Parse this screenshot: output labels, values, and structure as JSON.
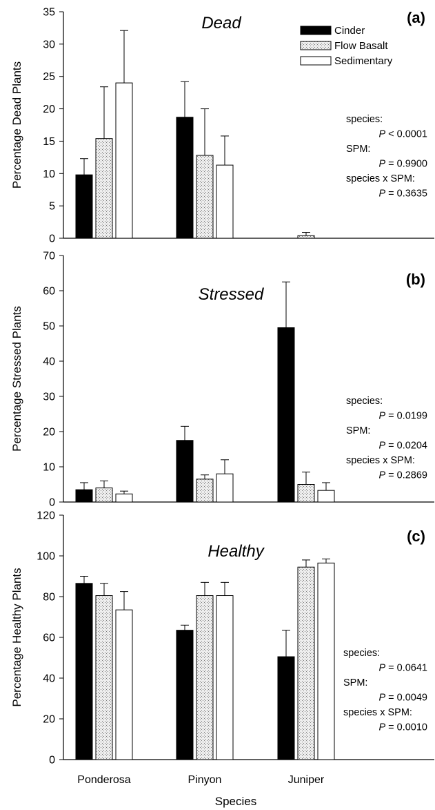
{
  "figure": {
    "xlabel": "Species",
    "categories": [
      "Ponderosa",
      "Pinyon",
      "Juniper"
    ]
  },
  "legend": {
    "entries": [
      {
        "name": "Cinder",
        "pattern": "solid-black"
      },
      {
        "name": "Flow Basalt",
        "pattern": "stipple-grey"
      },
      {
        "name": "Sedimentary",
        "pattern": "white"
      }
    ]
  },
  "colors": {
    "cinder": "#000000",
    "flow_basalt_fill": "#e2e2e2",
    "sedimentary": "#ffffff",
    "axis": "#000000"
  },
  "chart_data": [
    {
      "type": "bar",
      "panel": "(a)",
      "title": "Dead",
      "ylabel": "Percentage Dead Plants",
      "ylim": [
        0,
        35
      ],
      "yticks": [
        0,
        5,
        10,
        15,
        20,
        25,
        30,
        35
      ],
      "categories": [
        "Ponderosa",
        "Pinyon",
        "Juniper"
      ],
      "series": [
        {
          "name": "Cinder",
          "values": [
            9.8,
            18.7,
            0
          ],
          "errors": [
            2.5,
            5.5,
            0
          ]
        },
        {
          "name": "Flow Basalt",
          "values": [
            15.4,
            12.8,
            0.4
          ],
          "errors": [
            8.0,
            7.2,
            0.5
          ]
        },
        {
          "name": "Sedimentary",
          "values": [
            24.0,
            11.3,
            0
          ],
          "errors": [
            8.1,
            4.5,
            0
          ]
        }
      ],
      "stats": [
        "species:",
        "P < 0.0001",
        "SPM:",
        "P = 0.9900",
        "species x SPM:",
        "P = 0.3635"
      ]
    },
    {
      "type": "bar",
      "panel": "(b)",
      "title": "Stressed",
      "ylabel": "Percentage Stressed Plants",
      "ylim": [
        0,
        70
      ],
      "yticks": [
        0,
        10,
        20,
        30,
        40,
        50,
        60,
        70
      ],
      "categories": [
        "Ponderosa",
        "Pinyon",
        "Juniper"
      ],
      "series": [
        {
          "name": "Cinder",
          "values": [
            3.5,
            17.5,
            49.5
          ],
          "errors": [
            2.0,
            4.0,
            13.0
          ]
        },
        {
          "name": "Flow Basalt",
          "values": [
            4.0,
            6.5,
            5.0
          ],
          "errors": [
            2.0,
            1.2,
            3.5
          ]
        },
        {
          "name": "Sedimentary",
          "values": [
            2.3,
            8.0,
            3.3
          ],
          "errors": [
            0.8,
            4.0,
            2.2
          ]
        }
      ],
      "stats": [
        "species:",
        "P = 0.0199",
        "SPM:",
        "P = 0.0204",
        "species x SPM:",
        "P = 0.2869"
      ]
    },
    {
      "type": "bar",
      "panel": "(c)",
      "title": "Healthy",
      "ylabel": "Percentage Healthy Plants",
      "ylim": [
        0,
        120
      ],
      "yticks": [
        0,
        20,
        40,
        60,
        80,
        100,
        120
      ],
      "categories": [
        "Ponderosa",
        "Pinyon",
        "Juniper"
      ],
      "series": [
        {
          "name": "Cinder",
          "values": [
            86.5,
            63.5,
            50.5
          ],
          "errors": [
            3.5,
            2.5,
            13.0
          ]
        },
        {
          "name": "Flow Basalt",
          "values": [
            80.5,
            80.5,
            94.5
          ],
          "errors": [
            6.0,
            6.5,
            3.5
          ]
        },
        {
          "name": "Sedimentary",
          "values": [
            73.5,
            80.5,
            96.5
          ],
          "errors": [
            9.0,
            6.5,
            2.0
          ]
        }
      ],
      "stats": [
        "species:",
        "P = 0.0641",
        "SPM:",
        "P = 0.0049",
        "species x SPM:",
        "P = 0.0010"
      ]
    }
  ]
}
